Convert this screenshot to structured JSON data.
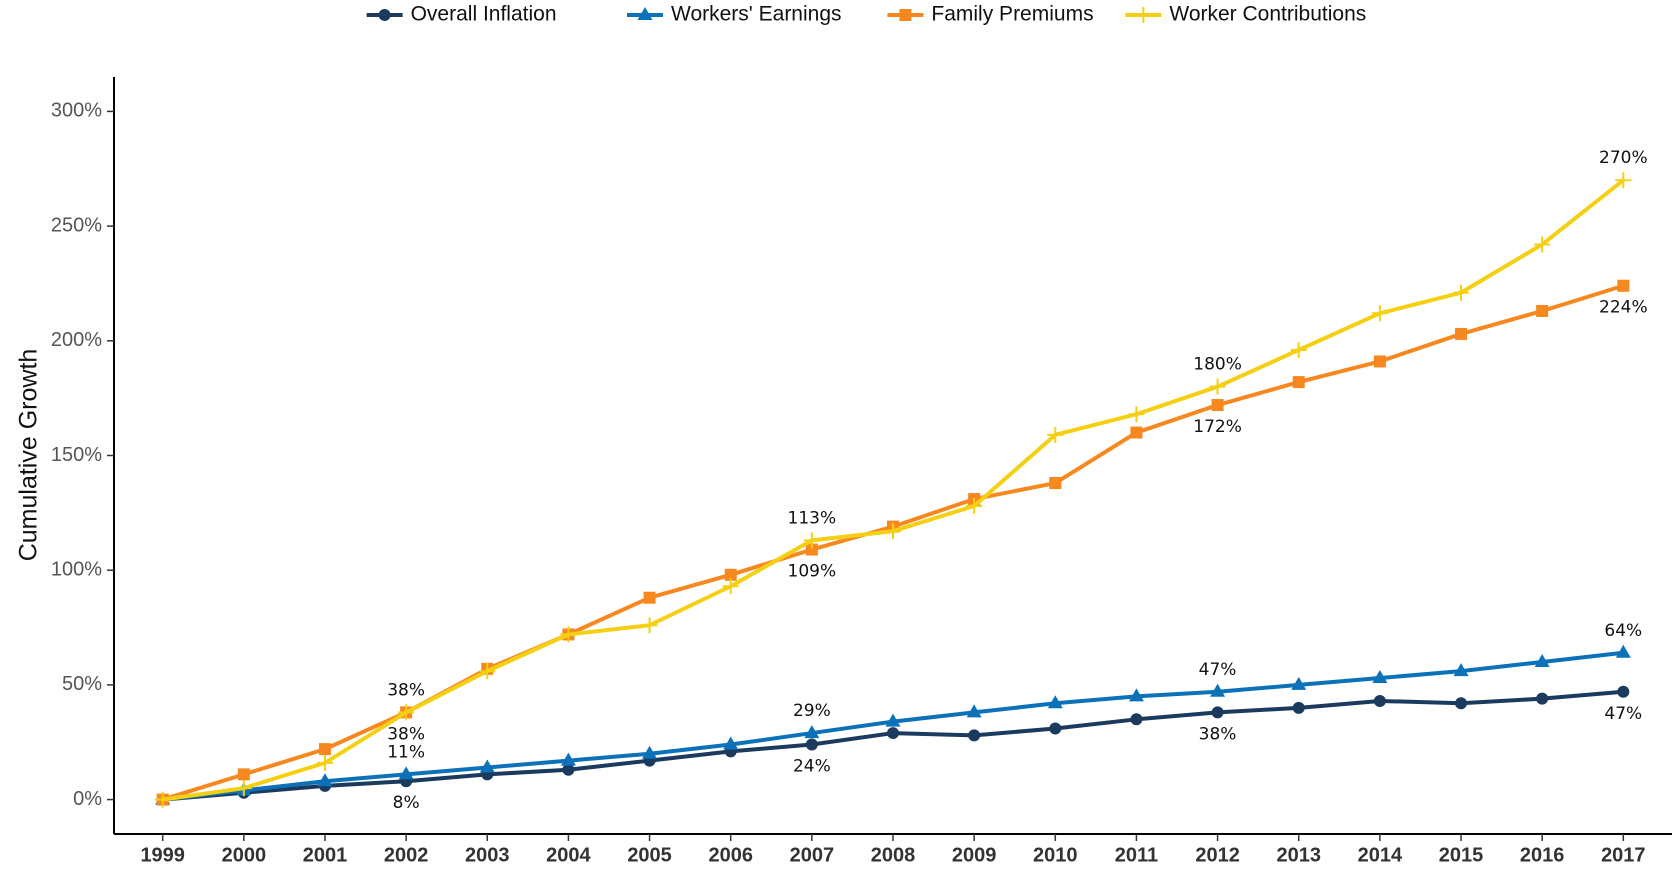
{
  "chart_data": {
    "type": "line",
    "y_label": "Cumulative Growth",
    "x": [
      1999,
      2000,
      2001,
      2002,
      2003,
      2004,
      2005,
      2006,
      2007,
      2008,
      2009,
      2010,
      2011,
      2012,
      2013,
      2014,
      2015,
      2016,
      2017
    ],
    "xlim": [
      1998.4,
      2017.6
    ],
    "ylim": [
      -15,
      315
    ],
    "yticks": [
      {
        "value": 0,
        "label": "0%"
      },
      {
        "value": 50,
        "label": "50%"
      },
      {
        "value": 100,
        "label": "100%"
      },
      {
        "value": 150,
        "label": "150%"
      },
      {
        "value": 200,
        "label": "200%"
      },
      {
        "value": 250,
        "label": "250%"
      },
      {
        "value": 300,
        "label": "300%"
      }
    ],
    "grid": false,
    "legend": "top",
    "series": [
      {
        "name": "Overall Inflation",
        "color": "#1b3a5e",
        "marker": "circle",
        "label_position": "below",
        "values": [
          0,
          3,
          6,
          8,
          11,
          13,
          17,
          21,
          24,
          29,
          28,
          31,
          35,
          38,
          40,
          43,
          42,
          44,
          47
        ],
        "value_labels": [
          null,
          null,
          null,
          "8%",
          null,
          null,
          null,
          null,
          "24%",
          null,
          null,
          null,
          null,
          "38%",
          null,
          null,
          null,
          null,
          "47%"
        ]
      },
      {
        "name": "Workers' Earnings",
        "color": "#0b72ba",
        "marker": "triangle",
        "label_position": "above",
        "values": [
          0,
          4,
          8,
          11,
          14,
          17,
          20,
          24,
          29,
          34,
          38,
          42,
          45,
          47,
          50,
          53,
          56,
          60,
          64
        ],
        "value_labels": [
          null,
          null,
          null,
          "11%",
          null,
          null,
          null,
          null,
          "29%",
          null,
          null,
          null,
          null,
          "47%",
          null,
          null,
          null,
          null,
          "64%"
        ]
      },
      {
        "name": "Family Premiums",
        "color": "#f7871f",
        "marker": "square",
        "label_position": "below",
        "values": [
          0,
          11,
          22,
          38,
          57,
          72,
          88,
          98,
          109,
          119,
          131,
          138,
          160,
          172,
          182,
          191,
          203,
          213,
          224
        ],
        "value_labels": [
          null,
          null,
          null,
          "38%",
          null,
          null,
          null,
          null,
          "109%",
          null,
          null,
          null,
          null,
          "172%",
          null,
          null,
          null,
          null,
          "224%"
        ]
      },
      {
        "name": "Worker Contributions",
        "color": "#f5d012",
        "marker": "plus",
        "label_position": "above",
        "values": [
          0,
          5,
          16,
          38,
          56,
          72,
          76,
          93,
          113,
          117,
          128,
          159,
          168,
          180,
          196,
          212,
          221,
          242,
          270
        ],
        "value_labels": [
          null,
          null,
          null,
          "38%",
          null,
          null,
          null,
          null,
          "113%",
          null,
          null,
          null,
          null,
          "180%",
          null,
          null,
          null,
          null,
          "270%"
        ]
      }
    ]
  }
}
